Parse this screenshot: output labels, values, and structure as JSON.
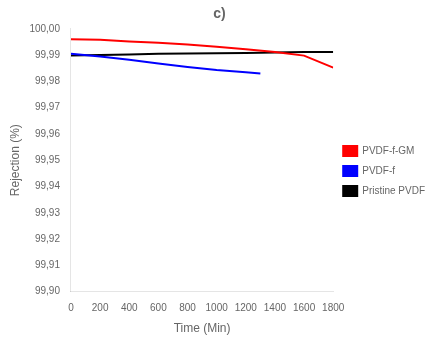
{
  "chart_data": {
    "type": "line",
    "title": "c)",
    "x_label": "Time (Min)",
    "y_label": "Rejection (%)",
    "xlim": [
      0,
      1800
    ],
    "ylim": [
      99.9,
      100.0
    ],
    "xticks": [
      0,
      200,
      400,
      600,
      800,
      1000,
      1200,
      1400,
      1600,
      1800
    ],
    "yticks": [
      {
        "value": 99.9,
        "label": "99,90"
      },
      {
        "value": 99.91,
        "label": "99,91"
      },
      {
        "value": 99.92,
        "label": "99,92"
      },
      {
        "value": 99.93,
        "label": "99,93"
      },
      {
        "value": 99.94,
        "label": "99,94"
      },
      {
        "value": 99.95,
        "label": "99,95"
      },
      {
        "value": 99.96,
        "label": "99,96"
      },
      {
        "value": 99.97,
        "label": "99,97"
      },
      {
        "value": 99.98,
        "label": "99,98"
      },
      {
        "value": 99.99,
        "label": "99,99"
      },
      {
        "value": 100.0,
        "label": "100,00"
      }
    ],
    "grid": false,
    "legend": "right",
    "series": [
      {
        "name": "PVDF-f-GM",
        "color": "#ff0000",
        "x": [
          0,
          200,
          400,
          600,
          800,
          1000,
          1200,
          1400,
          1600,
          1800
        ],
        "values": [
          99.996,
          99.9958,
          99.9952,
          99.9947,
          99.994,
          99.9932,
          99.9922,
          99.9912,
          99.9898,
          99.9852
        ]
      },
      {
        "name": "PVDF-f",
        "color": "#0000ff",
        "x": [
          0,
          200,
          400,
          600,
          800,
          1000,
          1200,
          1300
        ],
        "values": [
          99.9905,
          99.9895,
          99.9882,
          99.9868,
          99.9855,
          99.9843,
          99.9835,
          99.983
        ]
      },
      {
        "name": "Pristine PVDF",
        "color": "#000000",
        "x": [
          0,
          200,
          400,
          600,
          800,
          1000,
          1200,
          1400,
          1600,
          1800
        ],
        "values": [
          99.9898,
          99.99,
          99.9902,
          99.9905,
          99.9906,
          99.9907,
          99.9908,
          99.991,
          99.9912,
          99.9912
        ]
      }
    ]
  }
}
